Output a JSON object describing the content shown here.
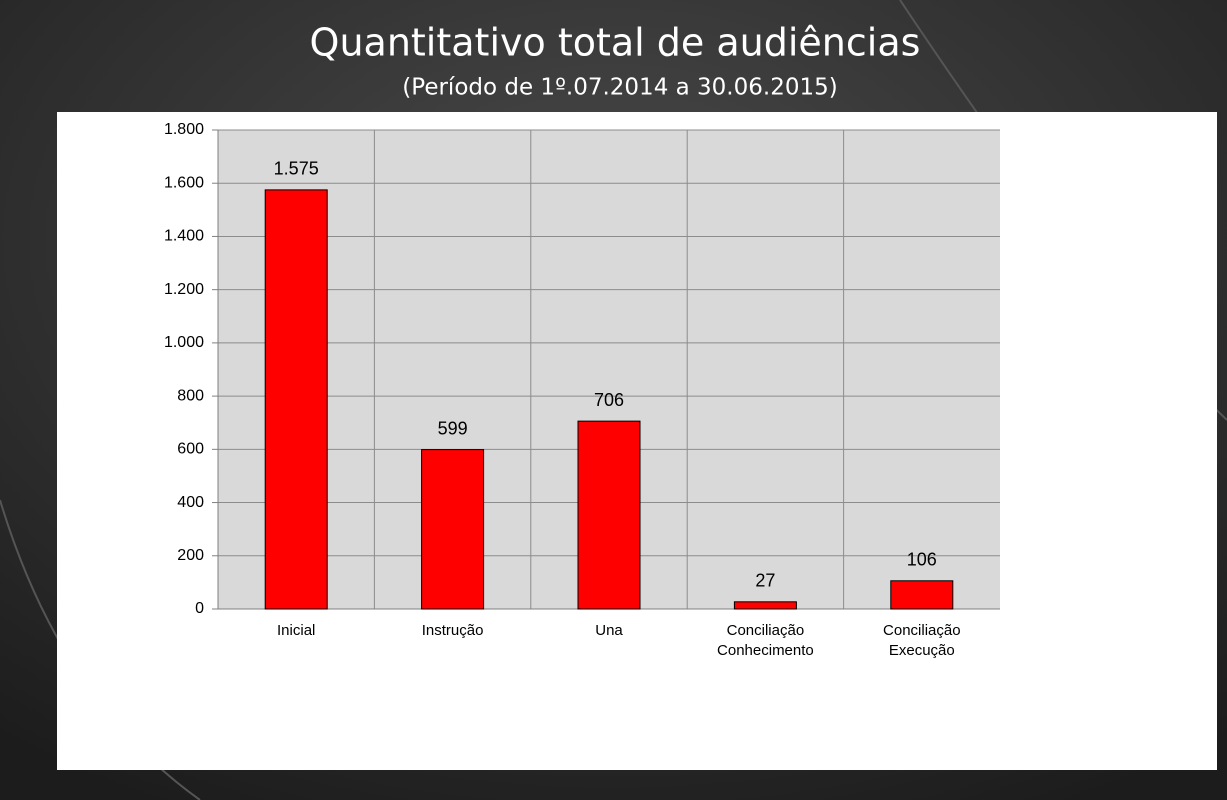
{
  "chart_data": {
    "type": "bar",
    "title": "Quantitativo total de audiências",
    "subtitle": "(Período de 1º.07.2014  a  30.06.2015)",
    "categories": [
      "Inicial",
      "Instrução",
      "Una",
      "Conciliação Conhecimento",
      "Conciliação Execução"
    ],
    "values": [
      1575,
      599,
      706,
      27,
      106
    ],
    "value_labels": [
      "1.575",
      "599",
      "706",
      "27",
      "106"
    ],
    "color": "#ff0000",
    "ylim": [
      0,
      1800
    ],
    "yticks": [
      0,
      200,
      400,
      600,
      800,
      {
        "value": 1000,
        "label": "1.000"
      },
      {
        "value": 1200,
        "label": "1.200"
      },
      {
        "value": 1400,
        "label": "1.400"
      },
      {
        "value": 1600,
        "label": "1.600"
      },
      {
        "value": 1800,
        "label": "1.800"
      }
    ],
    "grid": true
  }
}
